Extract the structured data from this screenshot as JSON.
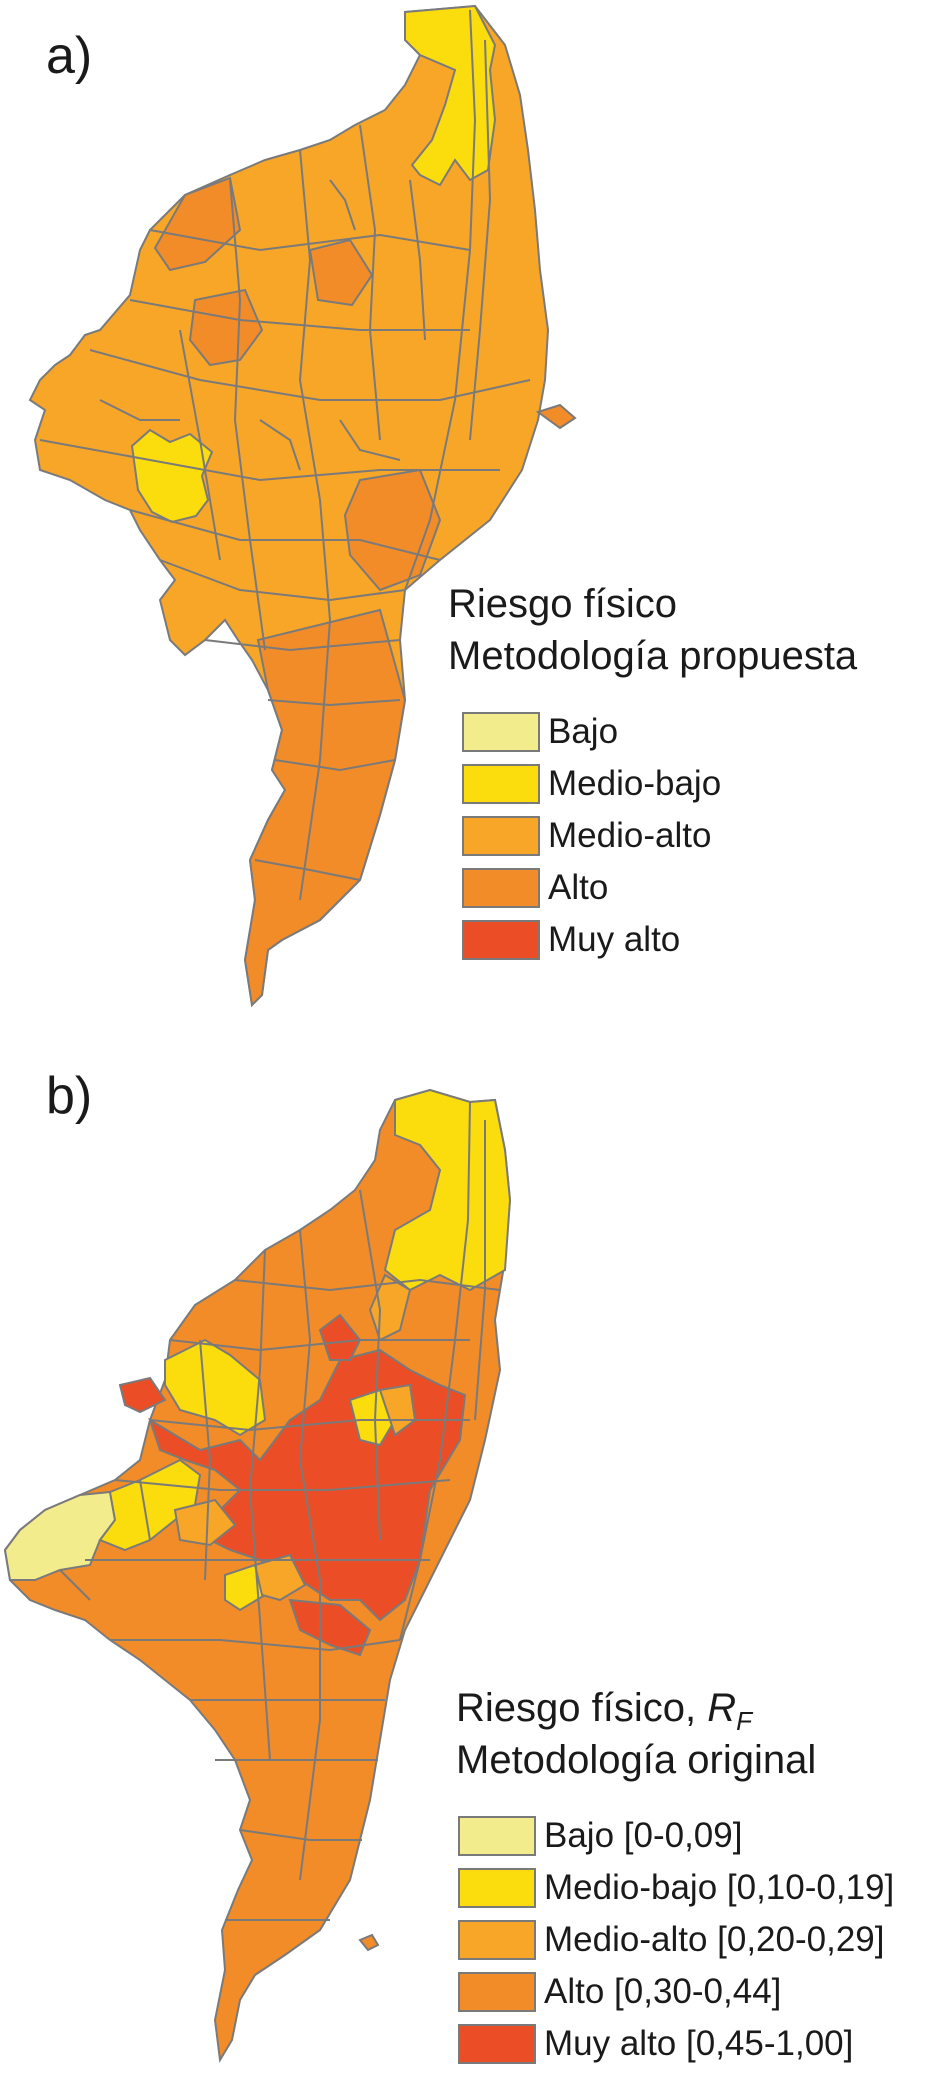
{
  "palette": {
    "bajo": "#f3ec8c",
    "medio_bajo": "#fbdc0c",
    "medio_alto": "#f8a628",
    "alto": "#f28c28",
    "muy_alto": "#eb4e27",
    "boundary": "#7a7a7a"
  },
  "panel_a": {
    "label": "a)",
    "legend": {
      "title_line1": "Riesgo físico",
      "title_line2": "Metodología propuesta",
      "items": [
        {
          "label": "Bajo",
          "color": "#f3ec8c"
        },
        {
          "label": "Medio-bajo",
          "color": "#fbdc0c"
        },
        {
          "label": "Medio-alto",
          "color": "#f8a628"
        },
        {
          "label": "Alto",
          "color": "#f28c28"
        },
        {
          "label": "Muy alto",
          "color": "#eb4e27"
        }
      ]
    }
  },
  "panel_b": {
    "label": "b)",
    "legend": {
      "title_line1": "Riesgo físico, ",
      "title_symbol": "R",
      "title_subscript": "F",
      "title_line2": "Metodología original",
      "items": [
        {
          "label": "Bajo [0-0,09]",
          "color": "#f3ec8c"
        },
        {
          "label": "Medio-bajo [0,10-0,19]",
          "color": "#fbdc0c"
        },
        {
          "label": "Medio-alto [0,20-0,29]",
          "color": "#f8a628"
        },
        {
          "label": "Alto [0,30-0,44]",
          "color": "#f28c28"
        },
        {
          "label": "Muy alto [0,45-1,00]",
          "color": "#eb4e27"
        }
      ]
    }
  }
}
